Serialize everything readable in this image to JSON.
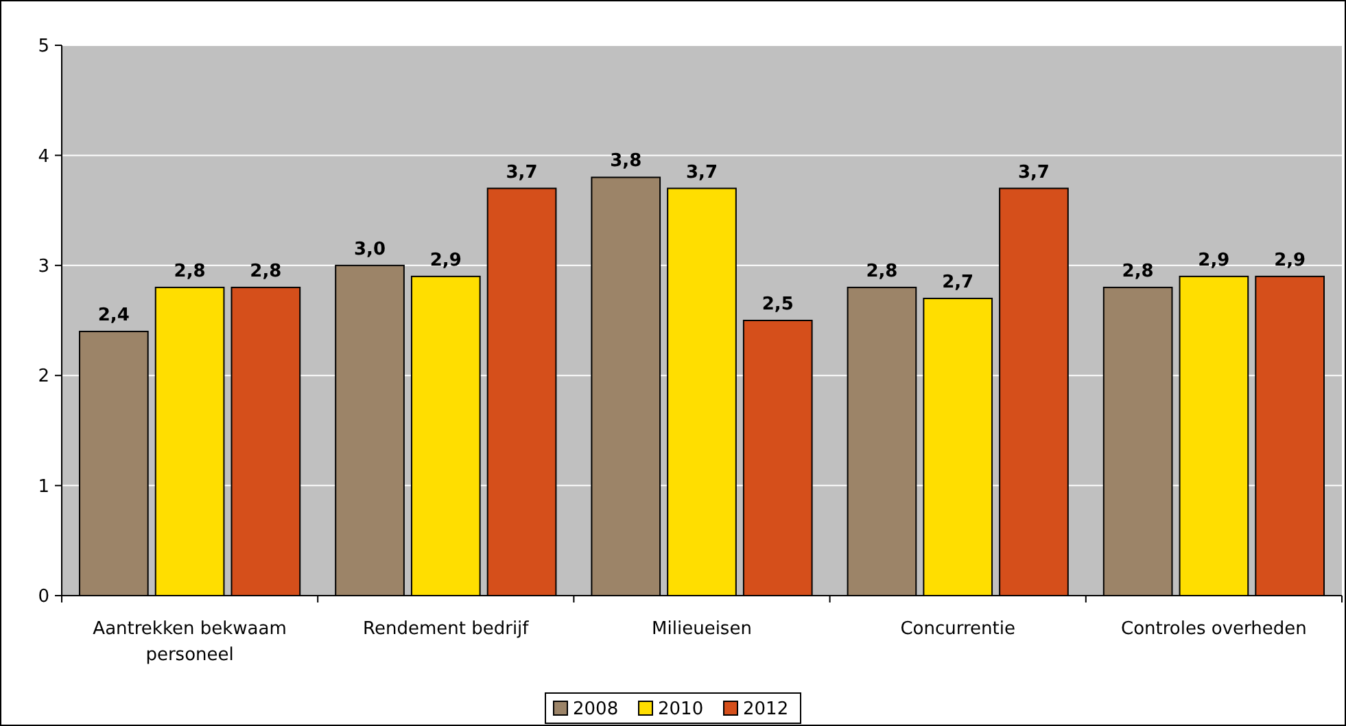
{
  "chart_data": {
    "type": "bar",
    "categories": [
      "Aantrekken bekwaam personeel",
      "Rendement bedrijf",
      "Milieueisen",
      "Concurrentie",
      "Controles overheden"
    ],
    "series": [
      {
        "name": "2008",
        "color": "#9c8468",
        "values": [
          2.4,
          3.0,
          3.8,
          2.8,
          2.8
        ],
        "value_labels": [
          "2,4",
          "3,0",
          "3,8",
          "2,8",
          "2,8"
        ]
      },
      {
        "name": "2010",
        "color": "#ffde00",
        "values": [
          2.8,
          2.9,
          3.7,
          2.7,
          2.9
        ],
        "value_labels": [
          "2,8",
          "2,9",
          "3,7",
          "2,7",
          "2,9"
        ]
      },
      {
        "name": "2012",
        "color": "#d54f1b",
        "values": [
          2.8,
          3.7,
          2.5,
          3.7,
          2.9
        ],
        "value_labels": [
          "2,8",
          "3,7",
          "2,5",
          "3,7",
          "2,9"
        ]
      }
    ],
    "ylim": [
      0,
      5
    ],
    "yticks": [
      0,
      1,
      2,
      3,
      4,
      5
    ],
    "grid": "y",
    "legend": "bottom"
  }
}
